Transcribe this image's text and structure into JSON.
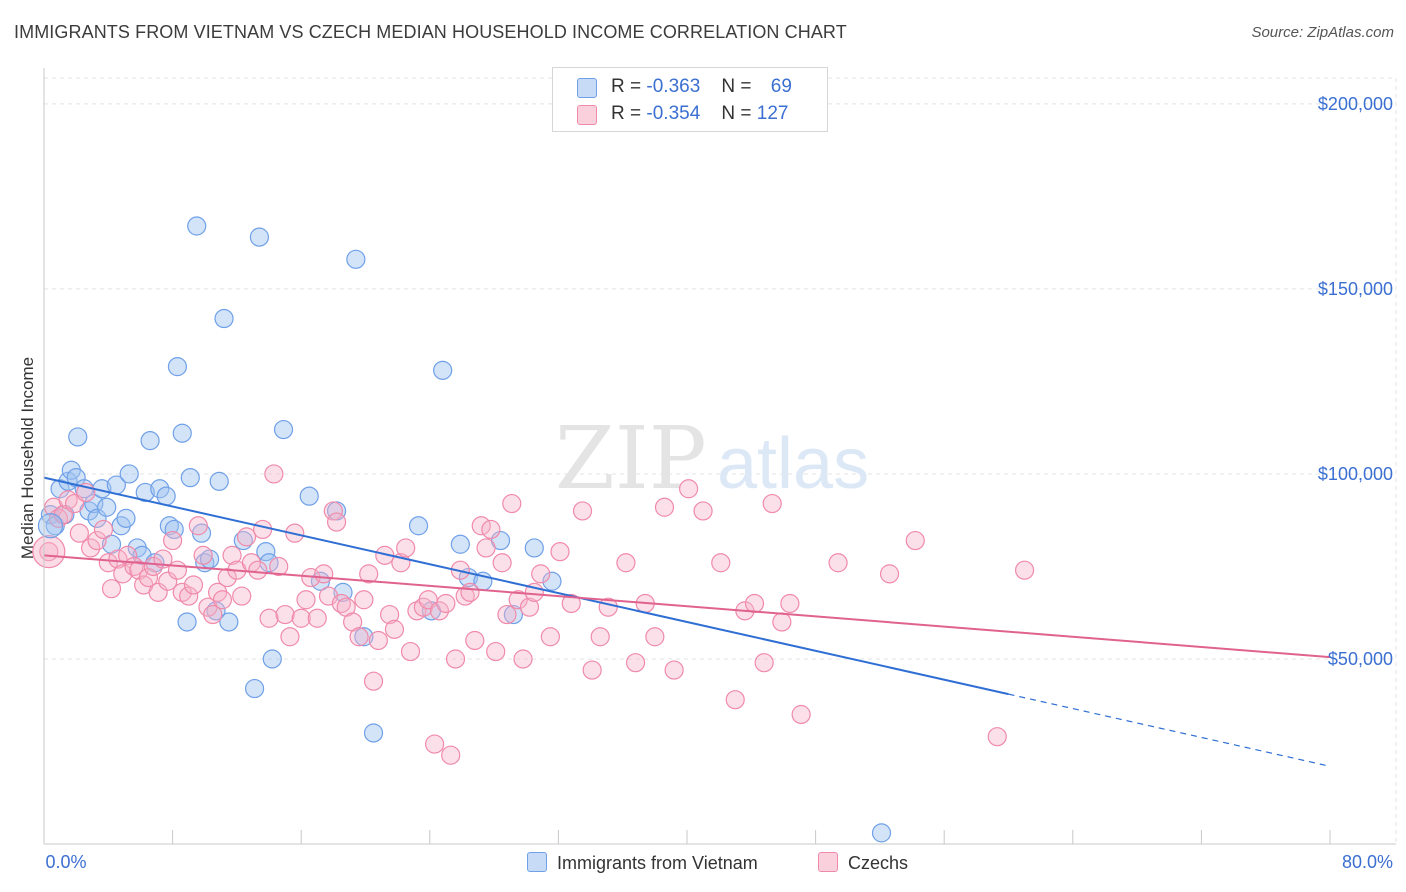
{
  "title": "IMMIGRANTS FROM VIETNAM VS CZECH MEDIAN HOUSEHOLD INCOME CORRELATION CHART",
  "source": "Source: ZipAtlas.com",
  "watermark": {
    "zip": "ZIP",
    "atlas": "atlas"
  },
  "legend_stats": [
    {
      "r_label": "R =",
      "r_value": "-0.363",
      "n_label": "N =",
      "n_value": "69",
      "color": "#6fa0e8"
    },
    {
      "r_label": "R =",
      "r_value": "-0.354",
      "n_label": "N =",
      "n_value": "127",
      "color": "#f08aaa"
    }
  ],
  "chart_data": {
    "type": "scatter",
    "xlabel": "",
    "ylabel": "Median Household Income",
    "xlim": [
      0,
      80
    ],
    "ylim": [
      0,
      207000
    ],
    "x_tick_labels": [
      "0.0%",
      "80.0%"
    ],
    "y_ticks": [
      50000,
      100000,
      150000,
      200000
    ],
    "y_tick_labels": [
      "$50,000",
      "$100,000",
      "$150,000",
      "$200,000"
    ],
    "grid": true,
    "legend_position": "bottom",
    "series": [
      {
        "name": "Immigrants from Vietnam",
        "color": "#6fa0e8",
        "line_color": "#2f6fd4",
        "trend": {
          "x0": 0,
          "y0": 99000,
          "x1": 60,
          "y1": 40500,
          "dash_x1": 80,
          "dash_y1": 21000
        },
        "points": [
          [
            0.4,
            89000
          ],
          [
            0.7,
            86000
          ],
          [
            1.0,
            96000
          ],
          [
            1.3,
            89000
          ],
          [
            1.5,
            98000
          ],
          [
            1.7,
            101000
          ],
          [
            2.0,
            99000
          ],
          [
            2.1,
            110000
          ],
          [
            2.5,
            96000
          ],
          [
            2.8,
            90000
          ],
          [
            3.1,
            92000
          ],
          [
            3.3,
            88000
          ],
          [
            3.6,
            96000
          ],
          [
            3.9,
            91000
          ],
          [
            4.2,
            81000
          ],
          [
            4.5,
            97000
          ],
          [
            4.8,
            86000
          ],
          [
            5.1,
            88000
          ],
          [
            5.3,
            100000
          ],
          [
            5.8,
            80000
          ],
          [
            6.1,
            78000
          ],
          [
            6.3,
            95000
          ],
          [
            6.6,
            109000
          ],
          [
            6.9,
            76000
          ],
          [
            7.2,
            96000
          ],
          [
            7.6,
            94000
          ],
          [
            7.8,
            86000
          ],
          [
            8.1,
            85000
          ],
          [
            8.3,
            129000
          ],
          [
            8.6,
            111000
          ],
          [
            8.9,
            60000
          ],
          [
            9.1,
            99000
          ],
          [
            9.5,
            167000
          ],
          [
            9.8,
            84000
          ],
          [
            10.0,
            76000
          ],
          [
            10.3,
            77000
          ],
          [
            10.7,
            63000
          ],
          [
            10.9,
            98000
          ],
          [
            11.2,
            142000
          ],
          [
            11.5,
            60000
          ],
          [
            12.4,
            82000
          ],
          [
            13.1,
            42000
          ],
          [
            13.4,
            164000
          ],
          [
            13.8,
            79000
          ],
          [
            14.0,
            76000
          ],
          [
            14.2,
            50000
          ],
          [
            14.9,
            112000
          ],
          [
            16.5,
            94000
          ],
          [
            17.2,
            71000
          ],
          [
            18.2,
            90000
          ],
          [
            18.6,
            68000
          ],
          [
            19.4,
            158000
          ],
          [
            19.9,
            56000
          ],
          [
            20.5,
            30000
          ],
          [
            23.3,
            86000
          ],
          [
            24.1,
            63000
          ],
          [
            24.8,
            128000
          ],
          [
            25.9,
            81000
          ],
          [
            26.4,
            72000
          ],
          [
            27.3,
            71000
          ],
          [
            28.4,
            82000
          ],
          [
            29.2,
            62000
          ],
          [
            30.5,
            80000
          ],
          [
            31.6,
            71000
          ],
          [
            52.1,
            3000
          ]
        ]
      },
      {
        "name": "Czechs",
        "color": "#f08aaa",
        "line_color": "#e0628e",
        "trend": {
          "x0": 0,
          "y0": 78000,
          "x1": 80,
          "y1": 50500
        },
        "points": [
          [
            0.3,
            79000
          ],
          [
            0.6,
            91000
          ],
          [
            0.9,
            88000
          ],
          [
            1.2,
            89000
          ],
          [
            1.5,
            93000
          ],
          [
            1.9,
            92000
          ],
          [
            2.2,
            84000
          ],
          [
            2.6,
            95000
          ],
          [
            2.9,
            80000
          ],
          [
            3.3,
            82000
          ],
          [
            3.7,
            85000
          ],
          [
            4.0,
            76000
          ],
          [
            4.2,
            69000
          ],
          [
            4.6,
            77000
          ],
          [
            4.9,
            73000
          ],
          [
            5.2,
            78000
          ],
          [
            5.6,
            75000
          ],
          [
            5.9,
            74000
          ],
          [
            6.2,
            70000
          ],
          [
            6.5,
            72000
          ],
          [
            6.8,
            75000
          ],
          [
            7.1,
            68000
          ],
          [
            7.4,
            77000
          ],
          [
            7.7,
            71000
          ],
          [
            8.0,
            82000
          ],
          [
            8.3,
            74000
          ],
          [
            8.6,
            68000
          ],
          [
            9.0,
            67000
          ],
          [
            9.3,
            70000
          ],
          [
            9.6,
            86000
          ],
          [
            9.9,
            78000
          ],
          [
            10.2,
            64000
          ],
          [
            10.5,
            62000
          ],
          [
            10.8,
            68000
          ],
          [
            11.1,
            66000
          ],
          [
            11.4,
            72000
          ],
          [
            11.7,
            78000
          ],
          [
            12.0,
            74000
          ],
          [
            12.3,
            67000
          ],
          [
            12.6,
            83000
          ],
          [
            12.9,
            76000
          ],
          [
            13.3,
            74000
          ],
          [
            13.6,
            85000
          ],
          [
            14.0,
            61000
          ],
          [
            14.3,
            100000
          ],
          [
            14.6,
            75000
          ],
          [
            15.0,
            62000
          ],
          [
            15.3,
            56000
          ],
          [
            15.6,
            84000
          ],
          [
            16.0,
            61000
          ],
          [
            16.3,
            66000
          ],
          [
            16.6,
            72000
          ],
          [
            17.0,
            61000
          ],
          [
            17.4,
            73000
          ],
          [
            17.7,
            67000
          ],
          [
            18.0,
            90000
          ],
          [
            18.2,
            87000
          ],
          [
            18.5,
            65000
          ],
          [
            18.8,
            64000
          ],
          [
            19.2,
            60000
          ],
          [
            19.6,
            56000
          ],
          [
            19.9,
            66000
          ],
          [
            20.2,
            73000
          ],
          [
            20.5,
            44000
          ],
          [
            20.8,
            55000
          ],
          [
            21.2,
            78000
          ],
          [
            21.5,
            62000
          ],
          [
            21.8,
            58000
          ],
          [
            22.2,
            76000
          ],
          [
            22.5,
            80000
          ],
          [
            22.8,
            52000
          ],
          [
            23.2,
            63000
          ],
          [
            23.6,
            64000
          ],
          [
            23.9,
            66000
          ],
          [
            24.3,
            27000
          ],
          [
            24.6,
            63000
          ],
          [
            25.0,
            65000
          ],
          [
            25.3,
            24000
          ],
          [
            25.6,
            50000
          ],
          [
            25.9,
            74000
          ],
          [
            26.2,
            67000
          ],
          [
            26.5,
            68000
          ],
          [
            26.8,
            55000
          ],
          [
            27.2,
            86000
          ],
          [
            27.5,
            80000
          ],
          [
            27.8,
            85000
          ],
          [
            28.1,
            52000
          ],
          [
            28.5,
            76000
          ],
          [
            28.8,
            62000
          ],
          [
            29.1,
            92000
          ],
          [
            29.5,
            66000
          ],
          [
            29.8,
            50000
          ],
          [
            30.2,
            64000
          ],
          [
            30.5,
            68000
          ],
          [
            30.9,
            73000
          ],
          [
            31.5,
            56000
          ],
          [
            32.1,
            79000
          ],
          [
            32.8,
            65000
          ],
          [
            33.5,
            90000
          ],
          [
            34.1,
            47000
          ],
          [
            34.6,
            56000
          ],
          [
            35.1,
            64000
          ],
          [
            36.2,
            76000
          ],
          [
            36.8,
            49000
          ],
          [
            37.4,
            65000
          ],
          [
            38.0,
            56000
          ],
          [
            38.6,
            91000
          ],
          [
            39.2,
            47000
          ],
          [
            40.1,
            96000
          ],
          [
            41.0,
            90000
          ],
          [
            42.1,
            76000
          ],
          [
            43.0,
            39000
          ],
          [
            43.6,
            63000
          ],
          [
            44.2,
            65000
          ],
          [
            44.8,
            49000
          ],
          [
            45.3,
            92000
          ],
          [
            45.9,
            60000
          ],
          [
            46.4,
            65000
          ],
          [
            47.1,
            35000
          ],
          [
            49.4,
            76000
          ],
          [
            52.6,
            73000
          ],
          [
            54.2,
            82000
          ],
          [
            59.3,
            29000
          ],
          [
            61.0,
            74000
          ]
        ]
      }
    ]
  }
}
